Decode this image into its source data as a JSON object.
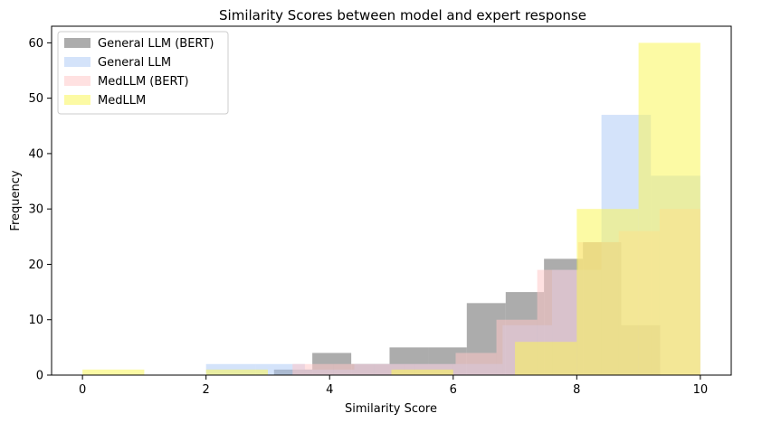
{
  "chart_data": {
    "type": "histogram",
    "title": "Similarity Scores between model and expert response",
    "xlabel": "Similarity Score",
    "ylabel": "Frequency",
    "xlim": [
      -0.5,
      10.5
    ],
    "ylim": [
      0,
      63
    ],
    "xticks": [
      0,
      2,
      4,
      6,
      8,
      10
    ],
    "yticks": [
      0,
      10,
      20,
      30,
      40,
      50,
      60
    ],
    "legend_position": "top-left",
    "grid": false,
    "series": [
      {
        "name": "General LLM (BERT)",
        "color": "#808080",
        "opacity": 0.65,
        "bins": [
          {
            "x0": 3.1,
            "x1": 3.72,
            "count": 1
          },
          {
            "x0": 3.72,
            "x1": 4.35,
            "count": 4
          },
          {
            "x0": 4.35,
            "x1": 4.97,
            "count": 2
          },
          {
            "x0": 4.97,
            "x1": 5.6,
            "count": 5
          },
          {
            "x0": 5.6,
            "x1": 6.22,
            "count": 5
          },
          {
            "x0": 6.22,
            "x1": 6.85,
            "count": 13
          },
          {
            "x0": 6.85,
            "x1": 7.47,
            "count": 15
          },
          {
            "x0": 7.47,
            "x1": 8.1,
            "count": 21
          },
          {
            "x0": 8.1,
            "x1": 8.72,
            "count": 24
          },
          {
            "x0": 8.72,
            "x1": 9.35,
            "count": 9
          }
        ]
      },
      {
        "name": "General LLM",
        "color": "#a9c8f5",
        "opacity": 0.5,
        "bins": [
          {
            "x0": 2.0,
            "x1": 2.8,
            "count": 2
          },
          {
            "x0": 2.8,
            "x1": 3.6,
            "count": 2
          },
          {
            "x0": 3.6,
            "x1": 4.4,
            "count": 1
          },
          {
            "x0": 4.4,
            "x1": 5.2,
            "count": 2
          },
          {
            "x0": 5.2,
            "x1": 6.0,
            "count": 2
          },
          {
            "x0": 6.0,
            "x1": 6.8,
            "count": 2
          },
          {
            "x0": 6.8,
            "x1": 7.6,
            "count": 9
          },
          {
            "x0": 7.6,
            "x1": 8.4,
            "count": 19
          },
          {
            "x0": 8.4,
            "x1": 9.2,
            "count": 47
          },
          {
            "x0": 9.2,
            "x1": 10.0,
            "count": 36
          }
        ]
      },
      {
        "name": "MedLLM (BERT)",
        "color": "#ffc8c8",
        "opacity": 0.55,
        "bins": [
          {
            "x0": 3.4,
            "x1": 4.06,
            "count": 2
          },
          {
            "x0": 4.06,
            "x1": 4.72,
            "count": 2
          },
          {
            "x0": 4.72,
            "x1": 5.38,
            "count": 2
          },
          {
            "x0": 5.38,
            "x1": 6.04,
            "count": 2
          },
          {
            "x0": 6.04,
            "x1": 6.7,
            "count": 4
          },
          {
            "x0": 6.7,
            "x1": 7.36,
            "count": 10
          },
          {
            "x0": 7.36,
            "x1": 8.02,
            "count": 19
          },
          {
            "x0": 8.02,
            "x1": 8.68,
            "count": 24
          },
          {
            "x0": 8.68,
            "x1": 9.34,
            "count": 26
          },
          {
            "x0": 9.34,
            "x1": 10.0,
            "count": 30
          }
        ]
      },
      {
        "name": "MedLLM",
        "color": "#faf55a",
        "opacity": 0.55,
        "bins": [
          {
            "x0": 0.0,
            "x1": 1.0,
            "count": 1
          },
          {
            "x0": 1.0,
            "x1": 2.0,
            "count": 0
          },
          {
            "x0": 2.0,
            "x1": 3.0,
            "count": 1
          },
          {
            "x0": 3.0,
            "x1": 4.0,
            "count": 0
          },
          {
            "x0": 4.0,
            "x1": 5.0,
            "count": 0
          },
          {
            "x0": 5.0,
            "x1": 6.0,
            "count": 1
          },
          {
            "x0": 6.0,
            "x1": 7.0,
            "count": 0
          },
          {
            "x0": 7.0,
            "x1": 8.0,
            "count": 6
          },
          {
            "x0": 8.0,
            "x1": 9.0,
            "count": 30
          },
          {
            "x0": 9.0,
            "x1": 10.0,
            "count": 60
          }
        ]
      }
    ]
  }
}
